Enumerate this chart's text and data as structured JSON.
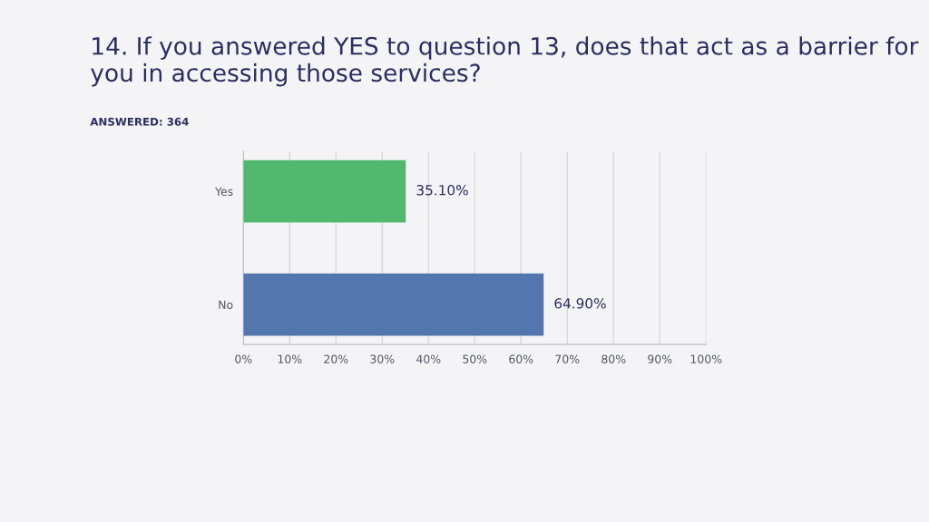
{
  "chart_data": {
    "type": "bar",
    "orientation": "horizontal",
    "title": "14. If you answered YES to question 13, does that act as a barrier for you in accessing those services?",
    "subtitle": "ANSWERED: 364",
    "categories": [
      "Yes",
      "No"
    ],
    "values": [
      35.1,
      64.9
    ],
    "colors": [
      "#52b86f",
      "#5376ae"
    ],
    "value_labels": [
      "35.10%",
      "64.90%"
    ],
    "xlim": [
      0,
      100
    ],
    "xticks": [
      {
        "value": 0,
        "label": "0%"
      },
      {
        "value": 10,
        "label": "10%"
      },
      {
        "value": 20,
        "label": "20%"
      },
      {
        "value": 30,
        "label": "30%"
      },
      {
        "value": 40,
        "label": "40%"
      },
      {
        "value": 50,
        "label": "50%"
      },
      {
        "value": 60,
        "label": "60%"
      },
      {
        "value": 70,
        "label": "70%"
      },
      {
        "value": 80,
        "label": "80%"
      },
      {
        "value": 90,
        "label": "90%"
      },
      {
        "value": 100,
        "label": "100%"
      }
    ],
    "grid": "x"
  }
}
